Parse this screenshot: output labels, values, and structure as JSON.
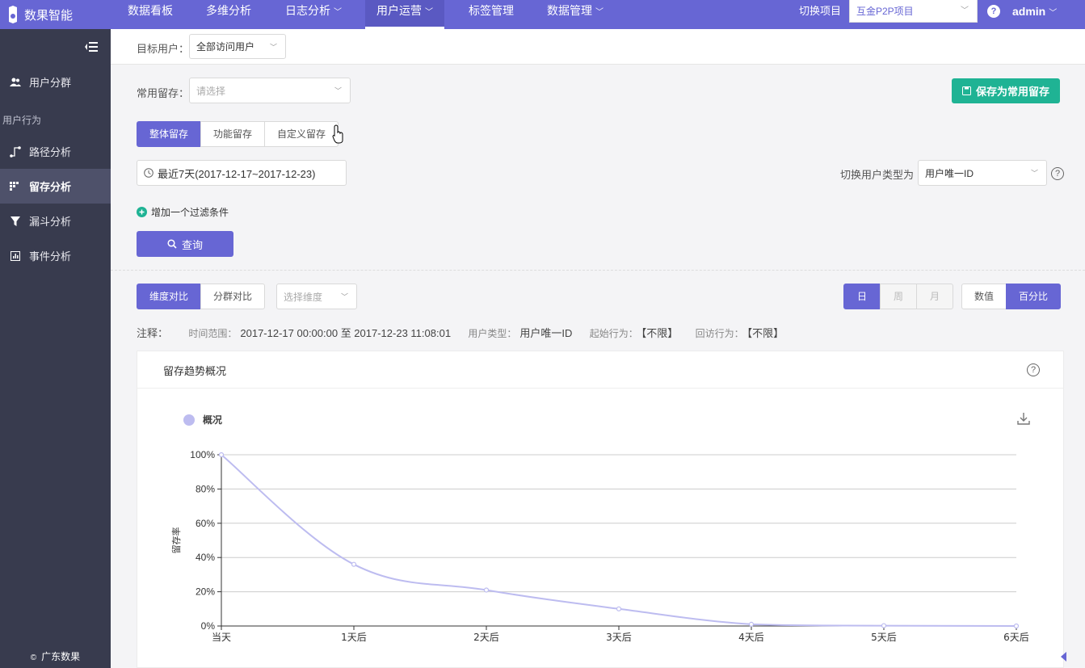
{
  "logo": {
    "text": "数果智能"
  },
  "nav": {
    "items": [
      {
        "label": "数据看板",
        "dropdown": false
      },
      {
        "label": "多维分析",
        "dropdown": false
      },
      {
        "label": "日志分析",
        "dropdown": true
      },
      {
        "label": "用户运营",
        "dropdown": true,
        "active": true
      },
      {
        "label": "标签管理",
        "dropdown": false
      },
      {
        "label": "数据管理",
        "dropdown": true
      }
    ],
    "switch_label": "切换项目",
    "project": "互金P2P项目",
    "help": "?",
    "user": "admin"
  },
  "sidebar": {
    "items": [
      {
        "label": "用户分群",
        "icon": "users-icon"
      },
      {
        "label": "路径分析",
        "icon": "path-icon"
      },
      {
        "label": "留存分析",
        "icon": "retention-icon",
        "active": true
      },
      {
        "label": "漏斗分析",
        "icon": "funnel-icon"
      },
      {
        "label": "事件分析",
        "icon": "event-icon"
      }
    ],
    "section": "用户行为",
    "footer": "广东数果"
  },
  "target": {
    "label": "目标用户：",
    "value": "全部访问用户"
  },
  "common": {
    "label": "常用留存：",
    "placeholder": "请选择"
  },
  "save_button": "保存为常用留存",
  "retention_tabs": [
    "整体留存",
    "功能留存",
    "自定义留存"
  ],
  "date_range": "最近7天(2017-12-17~2017-12-23)",
  "user_type": {
    "label": "切换用户类型为",
    "value": "用户唯一ID"
  },
  "add_filter": "增加一个过滤条件",
  "query_button": "查询",
  "compare_tabs": [
    "维度对比",
    "分群对比"
  ],
  "dimension_placeholder": "选择维度",
  "granularity": [
    "日",
    "周",
    "月"
  ],
  "display_mode": [
    "数值",
    "百分比"
  ],
  "notes": {
    "prefix": "注释：",
    "time_key": "时间范围：",
    "time_val": "2017-12-17 00:00:00 至 2017-12-23 11:08:01",
    "type_key": "用户类型：",
    "type_val": "用户唯一ID",
    "start_key": "起始行为：",
    "start_val": "【不限】",
    "return_key": "回访行为：",
    "return_val": "【不限】"
  },
  "card": {
    "title": "留存趋势概况",
    "help": "?"
  },
  "colors": {
    "accent": "#6766d4",
    "green": "#1fb394",
    "series": "#bdbcf0",
    "sidebar": "#383b4e"
  },
  "chart_data": {
    "type": "line",
    "categories": [
      "当天",
      "1天后",
      "2天后",
      "3天后",
      "4天后",
      "5天后",
      "6天后"
    ],
    "series": [
      {
        "name": "概况",
        "values": [
          100,
          36,
          21,
          10,
          1,
          0.2,
          0
        ]
      }
    ],
    "ylabel": "留存率",
    "ylim": [
      0,
      100
    ],
    "yticks": [
      "0%",
      "20%",
      "40%",
      "60%",
      "80%",
      "100%"
    ],
    "grid": true,
    "legend": "top-left"
  }
}
